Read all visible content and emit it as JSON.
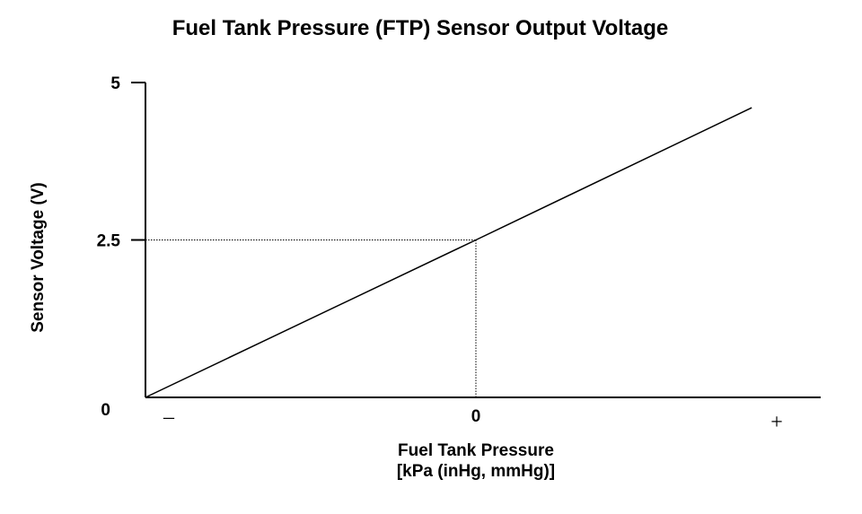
{
  "chart_data": {
    "type": "line",
    "title": "Fuel Tank Pressure (FTP) Sensor Output Voltage",
    "xlabel_line1": "Fuel Tank Pressure",
    "xlabel_line2": "[kPa (inHg, mmHg)]",
    "ylabel": "Sensor Voltage (V)",
    "x_tick_labels": [
      "–",
      "0",
      "+"
    ],
    "y_tick_labels": [
      "0",
      "2.5",
      "5"
    ],
    "x": [
      -1,
      0,
      0.8
    ],
    "y": [
      0,
      2.5,
      4.6
    ],
    "xlim": [
      -1,
      1
    ],
    "ylim": [
      0,
      5
    ],
    "reference_point": {
      "x": 0,
      "y": 2.5
    },
    "grid": false,
    "colors": {
      "line": "#000000",
      "axis": "#000000",
      "reference": "#000000"
    }
  }
}
